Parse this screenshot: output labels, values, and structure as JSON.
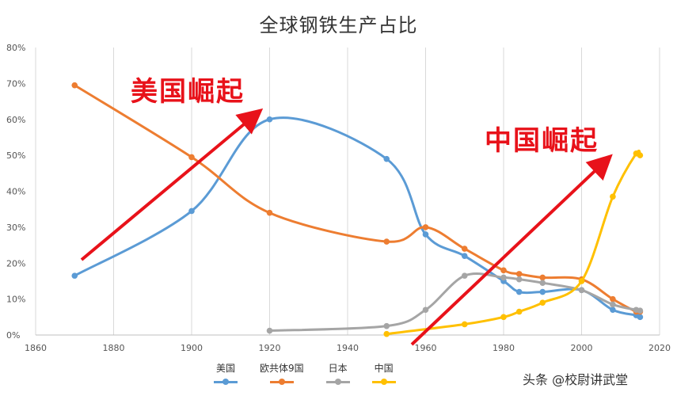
{
  "chart_data": {
    "type": "line",
    "title": "全球钢铁生产占比",
    "xlabel": "",
    "ylabel": "",
    "xlim": [
      1860,
      2020
    ],
    "ylim": [
      0,
      0.8
    ],
    "x_ticks": [
      "1860",
      "1880",
      "1900",
      "1920",
      "1940",
      "1960",
      "1980",
      "2000",
      "2020"
    ],
    "y_ticks": [
      "0%",
      "10%",
      "20%",
      "30%",
      "40%",
      "50%",
      "60%",
      "70%",
      "80%"
    ],
    "grid": "vertical",
    "legend_position": "bottom",
    "series": [
      {
        "name": "美国",
        "color": "#5b9bd5",
        "x": [
          1870,
          1900,
          1920,
          1950,
          1960,
          1970,
          1980,
          1984,
          1990,
          2000,
          2008,
          2014,
          2015
        ],
        "y": [
          0.165,
          0.345,
          0.6,
          0.49,
          0.28,
          0.22,
          0.15,
          0.12,
          0.12,
          0.125,
          0.07,
          0.055,
          0.05
        ]
      },
      {
        "name": "欧共体9国",
        "color": "#ed7d31",
        "x": [
          1870,
          1900,
          1920,
          1950,
          1960,
          1970,
          1980,
          1984,
          1990,
          2000,
          2008,
          2014,
          2015
        ],
        "y": [
          0.695,
          0.495,
          0.34,
          0.26,
          0.3,
          0.24,
          0.18,
          0.17,
          0.16,
          0.155,
          0.1,
          0.065,
          0.065
        ]
      },
      {
        "name": "日本",
        "color": "#a5a5a5",
        "x": [
          1920,
          1950,
          1960,
          1970,
          1980,
          1984,
          1990,
          2000,
          2008,
          2014,
          2015
        ],
        "y": [
          0.012,
          0.025,
          0.07,
          0.165,
          0.16,
          0.155,
          0.145,
          0.125,
          0.085,
          0.07,
          0.068
        ]
      },
      {
        "name": "中国",
        "color": "#ffc000",
        "x": [
          1950,
          1970,
          1980,
          1984,
          1990,
          2000,
          2008,
          2014,
          2015
        ],
        "y": [
          0.003,
          0.03,
          0.05,
          0.065,
          0.09,
          0.15,
          0.385,
          0.505,
          0.5
        ]
      }
    ],
    "annotations": [
      "美国崛起",
      "中国崛起"
    ]
  },
  "watermark": "头条 @校尉讲武堂",
  "colors": {
    "arrow": "#e8121a",
    "grid": "#d9d9d9"
  }
}
